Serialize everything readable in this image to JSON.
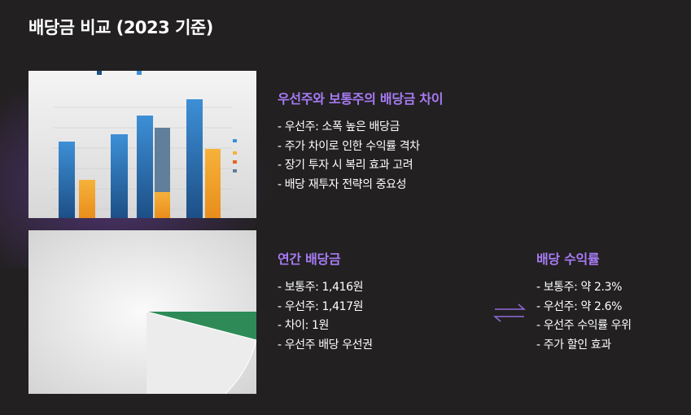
{
  "title": "배당금 비교 (2023 기준)",
  "sections": [
    {
      "heading": "우선주와 보통주의 배당금 차이",
      "items": [
        "- 우선주: 소폭 높은 배당금",
        "- 주가 차이로 인한 수익률 격차",
        "- 장기 투자 시 복리 효과 고려",
        "- 배당 재투자 전략의 중요성"
      ]
    },
    {
      "heading": "연간 배당금",
      "items": [
        "- 보통주: 1,416원",
        "- 우선주: 1,417원",
        "- 차이: 1원",
        "- 우선주 배당 우선권"
      ]
    },
    {
      "heading": "배당 수익률",
      "items": [
        "- 보통주: 약 2.3%",
        "- 우선주: 약 2.6%",
        "- 우선주 수익률 우위",
        "- 주가 할인 효과"
      ]
    }
  ]
}
